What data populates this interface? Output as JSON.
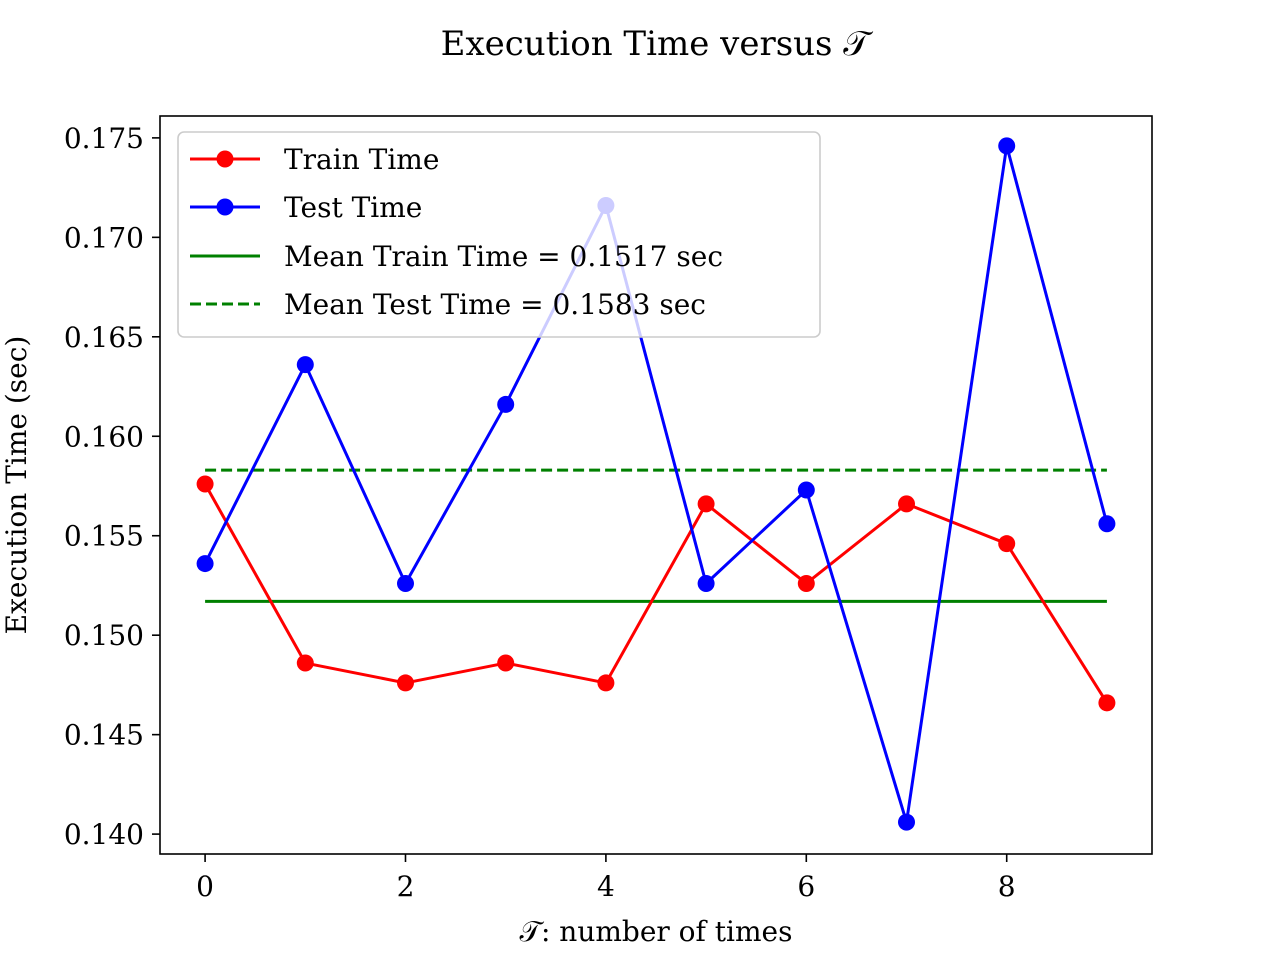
{
  "chart_data": {
    "type": "line",
    "title": "Execution Time versus 𝒯",
    "xlabel": "𝒯: number of times",
    "ylabel": "Execution Time (sec)",
    "xlim": [
      -0.45,
      9.45
    ],
    "ylim": [
      0.139,
      0.1761
    ],
    "xticks": [
      0,
      2,
      4,
      6,
      8
    ],
    "xtick_labels": [
      "0",
      "2",
      "4",
      "6",
      "8"
    ],
    "yticks": [
      0.14,
      0.145,
      0.15,
      0.155,
      0.16,
      0.165,
      0.17,
      0.175
    ],
    "ytick_labels": [
      "0.140",
      "0.145",
      "0.150",
      "0.155",
      "0.160",
      "0.165",
      "0.170",
      "0.175"
    ],
    "grid": false,
    "legend_position": "upper-left",
    "x": [
      0,
      1,
      2,
      3,
      4,
      5,
      6,
      7,
      8,
      9
    ],
    "series": [
      {
        "name": "Train Time",
        "color": "#ff0000",
        "style": "solid",
        "marker": "circle",
        "values": [
          0.1576,
          0.1486,
          0.1476,
          0.1486,
          0.1476,
          0.1566,
          0.1526,
          0.1566,
          0.1546,
          0.1466
        ]
      },
      {
        "name": "Test Time",
        "color": "#0000ff",
        "style": "solid",
        "marker": "circle",
        "values": [
          0.1536,
          0.1636,
          0.1526,
          0.1616,
          0.1716,
          0.1526,
          0.1573,
          0.1406,
          0.1746,
          0.1556
        ]
      }
    ],
    "reference_lines": [
      {
        "name": "Mean Train Time = 0.1517 sec",
        "color": "#008000",
        "style": "solid",
        "value": 0.1517,
        "x_range": [
          0,
          9
        ]
      },
      {
        "name": "Mean Test Time = 0.1583 sec",
        "color": "#008000",
        "style": "dashed",
        "value": 0.1583,
        "x_range": [
          0,
          9
        ]
      }
    ]
  }
}
